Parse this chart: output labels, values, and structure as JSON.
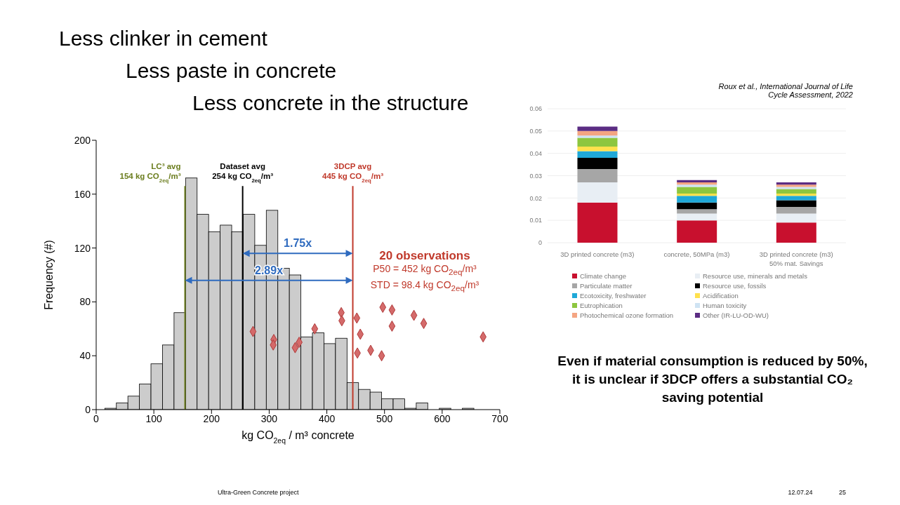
{
  "chart_data": [
    {
      "type": "histogram",
      "title": "Less clinker in cement\nLess paste in concrete\nLess concrete in the structure",
      "xlabel": "kg CO$_{2eq}$ / m³ concrete",
      "ylabel": "Frequency (#)",
      "xlim": [
        0,
        700
      ],
      "xticks": [
        0,
        100,
        200,
        300,
        400,
        500,
        600,
        700
      ],
      "ylim": [
        0,
        200
      ],
      "yticks": [
        0,
        40,
        80,
        120,
        160,
        200
      ],
      "grid": false,
      "legend": false,
      "series": [
        {
          "type": "histogram",
          "color": "#cccccc",
          "bins": [
            15,
            35,
            55,
            75,
            95,
            115,
            135,
            155,
            175,
            195,
            215,
            235,
            255,
            275,
            295,
            315,
            335,
            355,
            375,
            395,
            415,
            435,
            455,
            475,
            495,
            515,
            535,
            555,
            575,
            595,
            615,
            635,
            655
          ],
          "values": [
            1,
            5,
            10,
            19,
            34,
            48,
            72,
            172,
            145,
            132,
            137,
            132,
            145,
            122,
            148,
            105,
            100,
            54,
            57,
            49,
            53,
            20,
            15,
            13,
            8,
            8,
            1,
            5,
            0,
            1,
            0,
            1
          ]
        },
        {
          "type": "scatter",
          "color": "#d46a6a",
          "marker": "diamond",
          "x": [
            272,
            308,
            307,
            345,
            352,
            379,
            425,
            426,
            452,
            458,
            453,
            476,
            495,
            497,
            513,
            513,
            551,
            568,
            671
          ],
          "values": [
            58,
            52,
            48,
            46,
            50,
            60,
            72,
            66,
            68,
            56,
            42,
            44,
            40,
            76,
            74,
            62,
            70,
            64,
            54
          ]
        }
      ],
      "ref_lines": [
        {
          "axis": "x",
          "value": 154,
          "label": "LC³ avg\n154 kg CO$_{2eq}$/m³",
          "color": "#6b7d1e"
        },
        {
          "axis": "x",
          "value": 254,
          "label": "Dataset avg\n254 kg CO$_{2eq}$/m³",
          "color": "#000000"
        },
        {
          "axis": "x",
          "value": 445,
          "label": "3DCP avg\n445 kg CO$_{2eq}$/m³",
          "color": "#c0392b"
        }
      ],
      "annotations": [
        "1.75x",
        "2.89x",
        "20 observations",
        "P50 = 452 kg CO$_{2eq}$/m³",
        "STD = 98.4 kg CO$_{2eq}$/m³",
        "Ultra-Green Concrete project",
        "12.07.24",
        "25"
      ]
    },
    {
      "type": "bar",
      "stacked": true,
      "categories": [
        "3D printed concrete (m3)",
        "concrete, 50MPa (m3)",
        "3D printed concrete (m3)\n50% mat. Savings"
      ],
      "ylim": [
        0,
        0.06
      ],
      "yticks": [
        0,
        0.01,
        0.02,
        0.03,
        0.04,
        0.05,
        0.06
      ],
      "grid": "y",
      "legend": "bottom",
      "series": [
        {
          "name": "Climate change",
          "color": "#c8102e",
          "values": [
            0.018,
            0.01,
            0.009
          ]
        },
        {
          "name": "Resource use, minerals and metals",
          "color": "#e8eef4",
          "values": [
            0.009,
            0.003,
            0.004
          ]
        },
        {
          "name": "Particulate matter",
          "color": "#a6a6a6",
          "values": [
            0.006,
            0.002,
            0.003
          ]
        },
        {
          "name": "Resource use, fossils",
          "color": "#000000",
          "values": [
            0.005,
            0.003,
            0.003
          ]
        },
        {
          "name": "Ecotoxicity, freshwater",
          "color": "#1fa8d8",
          "values": [
            0.003,
            0.003,
            0.002
          ]
        },
        {
          "name": "Acidification",
          "color": "#ffe14d",
          "values": [
            0.002,
            0.001,
            0.001
          ]
        },
        {
          "name": "Eutrophication",
          "color": "#8dc63f",
          "values": [
            0.004,
            0.003,
            0.002
          ]
        },
        {
          "name": "Human toxicity",
          "color": "#cfe3f3",
          "values": [
            0.001,
            0.001,
            0.001
          ]
        },
        {
          "name": "Photochemical ozone formation",
          "color": "#f4a582",
          "values": [
            0.002,
            0.001,
            0.001
          ]
        },
        {
          "name": "Other (IR-LU-OD-WU)",
          "color": "#5b2c83",
          "values": [
            0.002,
            0.001,
            0.001
          ]
        }
      ],
      "annotations": [
        "Roux et al., International Journal of Life Cycle Assessment, 2022",
        "Even if material consumption is reduced by 50%, it is unclear if 3DCP offers a substantial CO₂ saving potential"
      ]
    }
  ]
}
